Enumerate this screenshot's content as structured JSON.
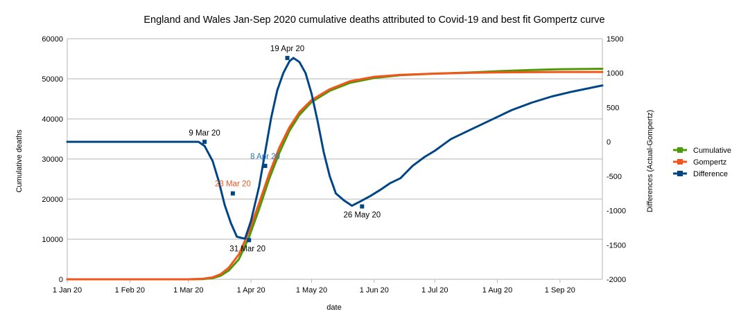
{
  "chart_data": {
    "type": "line",
    "title": "England and Wales Jan-Sep 2020 cumulative deaths attributed to Covid-19 and best fit Gompertz curve",
    "xlabel": "date",
    "ylabel": "Cumulative deaths",
    "y2label": "Differences (Actual-Gompertz)",
    "x_ticks": [
      "1 Jan 20",
      "1 Feb 20",
      "1 Mar 20",
      "1 Apr 20",
      "1 May 20",
      "1 Jun 20",
      "1 Jul 20",
      "1 Aug 20",
      "1 Sep 20"
    ],
    "x_tick_days": [
      0,
      31,
      60,
      91,
      121,
      152,
      182,
      213,
      244
    ],
    "x_range_days": [
      0,
      265
    ],
    "ylim": [
      0,
      60000
    ],
    "y_ticks": [
      0,
      10000,
      20000,
      30000,
      40000,
      50000,
      60000
    ],
    "y2lim": [
      -2000,
      1500
    ],
    "y2_ticks": [
      -2000,
      -1500,
      -1000,
      -500,
      0,
      500,
      1000,
      1500
    ],
    "legend_position": "right",
    "series": [
      {
        "name": "Cumulative",
        "axis": "left",
        "color": "#4e9a06",
        "points": [
          [
            0,
            0
          ],
          [
            60,
            0
          ],
          [
            67,
            60
          ],
          [
            72,
            300
          ],
          [
            76,
            900
          ],
          [
            80,
            2200
          ],
          [
            85,
            5000
          ],
          [
            90,
            10500
          ],
          [
            95,
            17500
          ],
          [
            100,
            25000
          ],
          [
            105,
            31500
          ],
          [
            110,
            37000
          ],
          [
            115,
            41000
          ],
          [
            121,
            44200
          ],
          [
            130,
            47000
          ],
          [
            140,
            49000
          ],
          [
            152,
            50200
          ],
          [
            165,
            50900
          ],
          [
            182,
            51300
          ],
          [
            200,
            51600
          ],
          [
            213,
            51900
          ],
          [
            230,
            52200
          ],
          [
            244,
            52400
          ],
          [
            265,
            52500
          ]
        ]
      },
      {
        "name": "Gompertz",
        "axis": "left",
        "color": "#f2561d",
        "points": [
          [
            0,
            0
          ],
          [
            60,
            0
          ],
          [
            67,
            120
          ],
          [
            72,
            500
          ],
          [
            76,
            1300
          ],
          [
            80,
            2900
          ],
          [
            85,
            6200
          ],
          [
            90,
            11900
          ],
          [
            95,
            19000
          ],
          [
            100,
            26300
          ],
          [
            105,
            32800
          ],
          [
            110,
            37900
          ],
          [
            115,
            41700
          ],
          [
            121,
            44700
          ],
          [
            130,
            47400
          ],
          [
            140,
            49400
          ],
          [
            152,
            50500
          ],
          [
            165,
            51000
          ],
          [
            182,
            51300
          ],
          [
            200,
            51500
          ],
          [
            213,
            51600
          ],
          [
            230,
            51650
          ],
          [
            244,
            51700
          ],
          [
            265,
            51700
          ]
        ]
      },
      {
        "name": "Difference",
        "axis": "right",
        "color": "#004586",
        "points": [
          [
            0,
            0
          ],
          [
            20,
            0
          ],
          [
            40,
            0
          ],
          [
            60,
            0
          ],
          [
            65,
            0
          ],
          [
            68,
            -60
          ],
          [
            72,
            -280
          ],
          [
            75,
            -570
          ],
          [
            78,
            -920
          ],
          [
            81,
            -1180
          ],
          [
            84,
            -1380
          ],
          [
            88,
            -1410
          ],
          [
            91,
            -1150
          ],
          [
            95,
            -650
          ],
          [
            98,
            -150
          ],
          [
            101,
            350
          ],
          [
            104,
            750
          ],
          [
            107,
            1000
          ],
          [
            110,
            1170
          ],
          [
            112,
            1220
          ],
          [
            115,
            1160
          ],
          [
            118,
            1000
          ],
          [
            121,
            700
          ],
          [
            124,
            300
          ],
          [
            127,
            -150
          ],
          [
            130,
            -500
          ],
          [
            133,
            -750
          ],
          [
            137,
            -850
          ],
          [
            141,
            -930
          ],
          [
            145,
            -870
          ],
          [
            150,
            -790
          ],
          [
            155,
            -700
          ],
          [
            160,
            -600
          ],
          [
            165,
            -530
          ],
          [
            171,
            -350
          ],
          [
            177,
            -220
          ],
          [
            182,
            -130
          ],
          [
            190,
            40
          ],
          [
            200,
            180
          ],
          [
            210,
            320
          ],
          [
            220,
            460
          ],
          [
            230,
            570
          ],
          [
            240,
            660
          ],
          [
            250,
            730
          ],
          [
            265,
            820
          ]
        ]
      }
    ],
    "annotations": [
      {
        "text": "9 Mar 20",
        "day": 68,
        "y2": 0,
        "color": "#000000"
      },
      {
        "text": "23 Mar 20",
        "day": 82,
        "y2": -750,
        "color": "#f2561d"
      },
      {
        "text": "31 Mar 20",
        "day": 90,
        "y2": -1430,
        "color": "#000000"
      },
      {
        "text": "8 Apr 20",
        "day": 98,
        "y2": -350,
        "color": "#2a6fbe"
      },
      {
        "text": "19 Apr 20",
        "day": 109,
        "y2": 1220,
        "color": "#000000"
      },
      {
        "text": "26 May 20",
        "day": 146,
        "y2": -940,
        "color": "#000000"
      }
    ]
  }
}
